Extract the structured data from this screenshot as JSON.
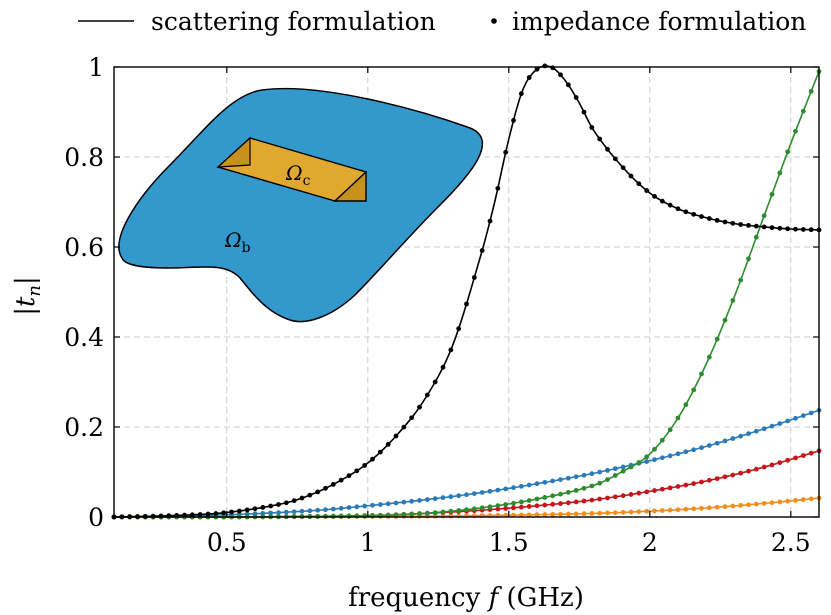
{
  "chart_data": {
    "type": "line",
    "xlabel": "frequency f (GHz)",
    "ylabel": "|t_n|",
    "xlim": [
      0.1,
      2.6
    ],
    "ylim": [
      0,
      1
    ],
    "xticks": [
      "0.5",
      "1",
      "1.5",
      "2",
      "2.5"
    ],
    "yticks": [
      "0",
      "0.2",
      "0.4",
      "0.6",
      "0.8",
      "1"
    ],
    "grid": true,
    "legend": {
      "placement": "top",
      "entries": [
        {
          "marker": "line",
          "label": "scattering formulation"
        },
        {
          "marker": "dot",
          "label": "impedance formulation"
        }
      ]
    },
    "inset_labels": [
      "Ω_c",
      "Ω_b"
    ],
    "colors": {
      "black": "#000000",
      "blue": "#2b7bba",
      "green": "#2e8b2e",
      "red": "#c4161c",
      "orange": "#f28e1c",
      "inset_body": "#3399cc",
      "inset_box": "#e0a82e"
    },
    "series": [
      {
        "color": "#000000",
        "x": [
          0.1,
          0.3,
          0.5,
          0.7,
          0.8,
          0.9,
          1.0,
          1.1,
          1.2,
          1.3,
          1.4,
          1.45,
          1.5,
          1.55,
          1.6,
          1.65,
          1.7,
          1.75,
          1.8,
          1.9,
          2.0,
          2.1,
          2.2,
          2.3,
          2.4,
          2.5,
          2.6
        ],
        "y": [
          0.0,
          0.003,
          0.01,
          0.03,
          0.05,
          0.08,
          0.12,
          0.18,
          0.26,
          0.38,
          0.58,
          0.7,
          0.84,
          0.95,
          0.995,
          1.0,
          0.97,
          0.92,
          0.86,
          0.78,
          0.72,
          0.685,
          0.665,
          0.652,
          0.645,
          0.64,
          0.638
        ]
      },
      {
        "color": "#2e8b2e",
        "x": [
          0.1,
          0.5,
          1.0,
          1.2,
          1.4,
          1.6,
          1.8,
          1.9,
          2.0,
          2.1,
          2.2,
          2.3,
          2.4,
          2.5,
          2.6
        ],
        "y": [
          0.0,
          0.0,
          0.003,
          0.008,
          0.02,
          0.04,
          0.07,
          0.1,
          0.14,
          0.22,
          0.34,
          0.49,
          0.66,
          0.83,
          0.99
        ]
      },
      {
        "color": "#2b7bba",
        "x": [
          0.1,
          0.5,
          0.8,
          1.0,
          1.2,
          1.4,
          1.6,
          1.8,
          2.0,
          2.2,
          2.4,
          2.6
        ],
        "y": [
          0.0,
          0.005,
          0.014,
          0.025,
          0.038,
          0.054,
          0.074,
          0.097,
          0.125,
          0.157,
          0.195,
          0.237
        ]
      },
      {
        "color": "#c4161c",
        "x": [
          0.1,
          0.5,
          1.0,
          1.2,
          1.4,
          1.6,
          1.8,
          2.0,
          2.2,
          2.4,
          2.6
        ],
        "y": [
          0.0,
          0.0,
          0.003,
          0.008,
          0.015,
          0.025,
          0.038,
          0.057,
          0.08,
          0.11,
          0.147
        ]
      },
      {
        "color": "#f28e1c",
        "x": [
          0.1,
          0.5,
          1.0,
          1.4,
          1.8,
          2.0,
          2.2,
          2.4,
          2.6
        ],
        "y": [
          0.0,
          0.0,
          0.001,
          0.003,
          0.008,
          0.013,
          0.02,
          0.03,
          0.042
        ]
      }
    ]
  }
}
